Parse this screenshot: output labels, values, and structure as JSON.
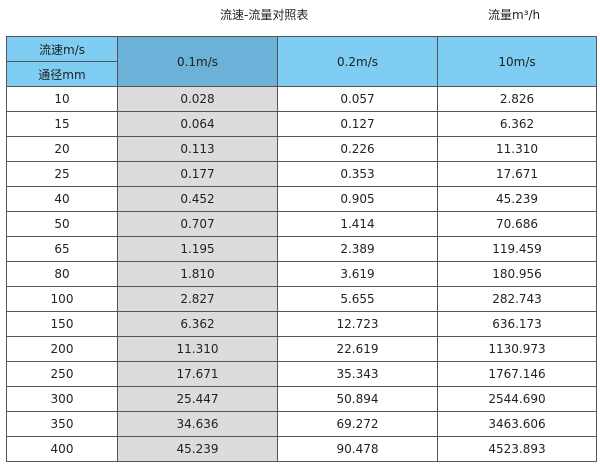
{
  "title": "流速-流量对照表",
  "unit": "流量m³/h",
  "header": {
    "velocity_label": "流速m/s",
    "diameter_label": "通径mm",
    "columns": [
      "0.1m/s",
      "0.2m/s",
      "10m/s"
    ]
  },
  "rows": [
    [
      "10",
      "0.028",
      "0.057",
      "2.826"
    ],
    [
      "15",
      "0.064",
      "0.127",
      "6.362"
    ],
    [
      "20",
      "0.113",
      "0.226",
      "11.310"
    ],
    [
      "25",
      "0.177",
      "0.353",
      "17.671"
    ],
    [
      "40",
      "0.452",
      "0.905",
      "45.239"
    ],
    [
      "50",
      "0.707",
      "1.414",
      "70.686"
    ],
    [
      "65",
      "1.195",
      "2.389",
      "119.459"
    ],
    [
      "80",
      "1.810",
      "3.619",
      "180.956"
    ],
    [
      "100",
      "2.827",
      "5.655",
      "282.743"
    ],
    [
      "150",
      "6.362",
      "12.723",
      "636.173"
    ],
    [
      "200",
      "11.310",
      "22.619",
      "1130.973"
    ],
    [
      "250",
      "17.671",
      "35.343",
      "1767.146"
    ],
    [
      "300",
      "25.447",
      "50.894",
      "2544.690"
    ],
    [
      "350",
      "34.636",
      "69.272",
      "3463.606"
    ],
    [
      "400",
      "45.239",
      "90.478",
      "4523.893"
    ]
  ],
  "colors": {
    "header": "#7fcdf3",
    "highlight_header": "#6cb2d8",
    "highlight_column": "#dcdcdc"
  }
}
